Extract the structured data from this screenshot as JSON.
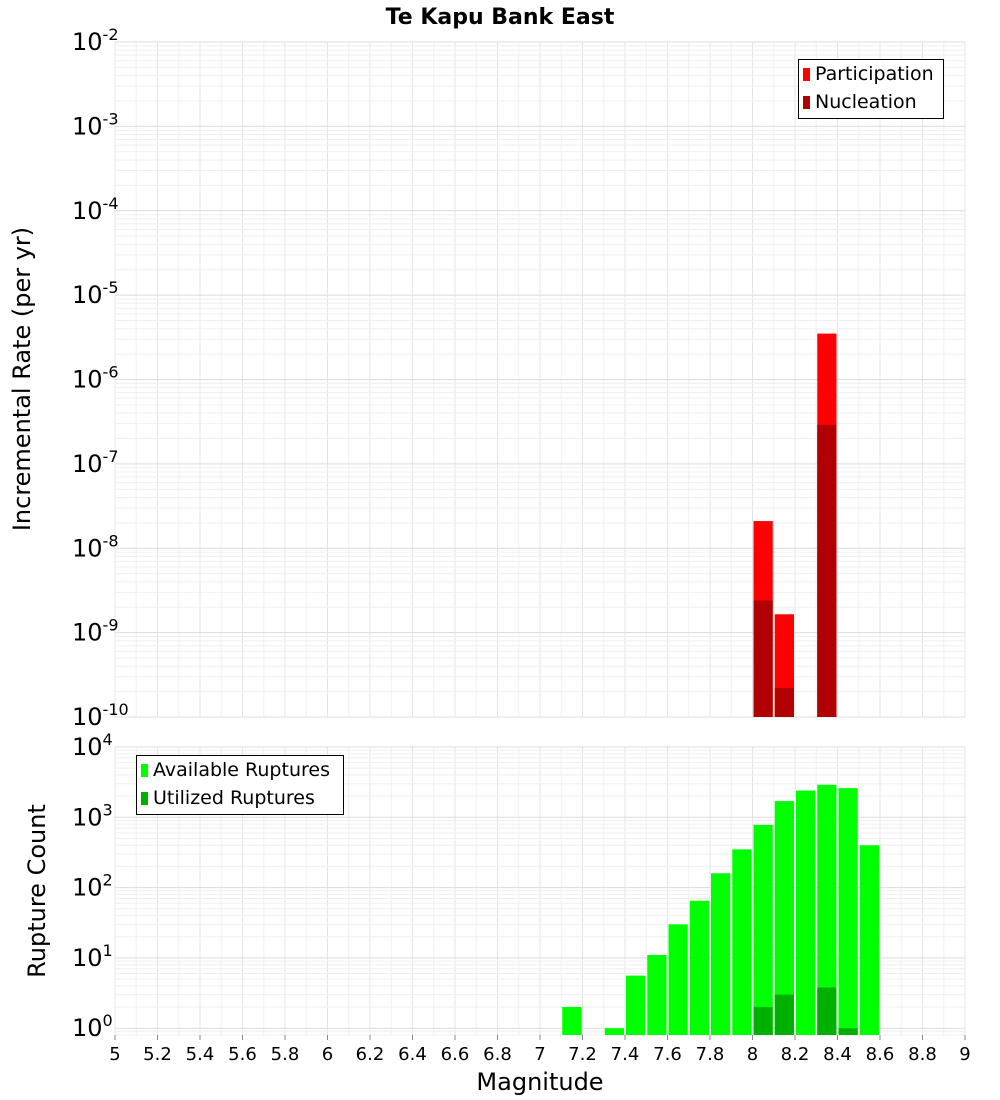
{
  "chart_data": [
    {
      "type": "bar",
      "title": "Te Kapu Bank East",
      "xlabel": "",
      "ylabel": "Incremental Rate (per yr)",
      "yscale": "log",
      "ylim": [
        1e-10,
        0.01
      ],
      "xlim": [
        5,
        9
      ],
      "y_tick_exponents": [
        "-2",
        "-3",
        "-4",
        "-5",
        "-6",
        "-7",
        "-8",
        "-9",
        "-10"
      ],
      "legend_position": "top-right",
      "bar_width": 0.1,
      "series": [
        {
          "name": "Participation",
          "color": "#ff0000",
          "x": [
            8.05,
            8.15,
            8.35
          ],
          "values": [
            2.1e-08,
            1.65e-09,
            3.5e-06
          ]
        },
        {
          "name": "Nucleation",
          "color": "#b00000",
          "x": [
            8.05,
            8.15,
            8.35
          ],
          "values": [
            2.4e-09,
            2.2e-10,
            2.9e-07
          ]
        }
      ]
    },
    {
      "type": "bar",
      "title": "",
      "xlabel": "Magnitude",
      "ylabel": "Rupture Count",
      "yscale": "log",
      "ylim": [
        0.8,
        10000
      ],
      "xlim": [
        5,
        9
      ],
      "y_tick_exponents": [
        "4",
        "3",
        "2",
        "1",
        "0"
      ],
      "legend_position": "top-left",
      "bar_width": 0.1,
      "x_tick_labels": [
        "5",
        "5.2",
        "5.4",
        "5.6",
        "5.8",
        "6",
        "6.2",
        "6.4",
        "6.6",
        "6.8",
        "7",
        "7.2",
        "7.4",
        "7.6",
        "7.8",
        "8",
        "8.2",
        "8.4",
        "8.6",
        "8.8",
        "9"
      ],
      "series": [
        {
          "name": "Available Ruptures",
          "color": "#00ff00",
          "x": [
            7.15,
            7.35,
            7.45,
            7.55,
            7.65,
            7.75,
            7.85,
            7.95,
            8.05,
            8.15,
            8.25,
            8.35,
            8.45,
            8.55
          ],
          "values": [
            2,
            1,
            5.6,
            11,
            30,
            65,
            160,
            350,
            780,
            1700,
            2400,
            2900,
            2600,
            400
          ]
        },
        {
          "name": "Utilized Ruptures",
          "color": "#00b000",
          "x": [
            8.05,
            8.15,
            8.35,
            8.45
          ],
          "values": [
            2,
            3,
            3.8,
            1
          ]
        }
      ]
    }
  ]
}
